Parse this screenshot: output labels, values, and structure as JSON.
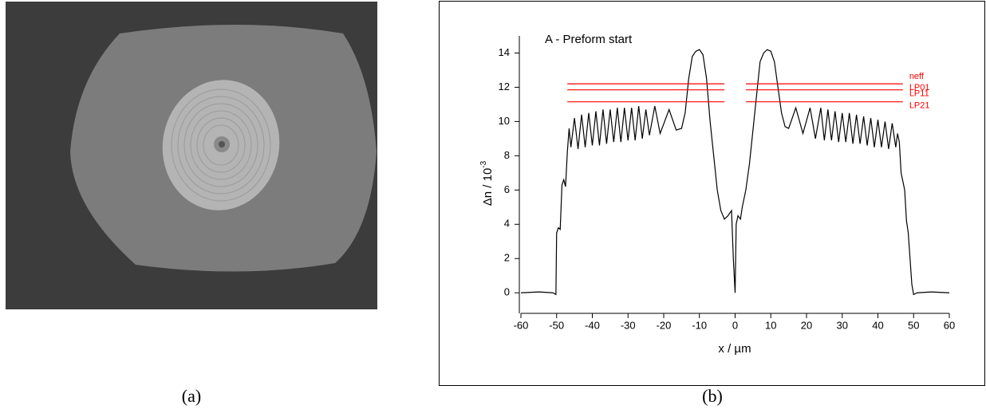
{
  "panel_labels": [
    "(a)",
    "(b)"
  ],
  "chart_data": {
    "type": "line",
    "annotation": "A - Preform start",
    "x_label": "x / µm",
    "y_label": "Δn / 10",
    "y_label_exponent": "-3",
    "color": "#000000",
    "xlim": [
      -60,
      60
    ],
    "ylim": [
      -1.2,
      15
    ],
    "xticks": [
      -60,
      -50,
      -40,
      -30,
      -20,
      -10,
      0,
      10,
      20,
      30,
      40,
      50,
      60
    ],
    "yticks": [
      0,
      2,
      4,
      6,
      8,
      10,
      12,
      14
    ],
    "x": [
      -60,
      -55,
      -51,
      -50.2,
      -50,
      -49.5,
      -49,
      -48.5,
      -48,
      -47.5,
      -47,
      -46.5,
      -46,
      -45,
      -44,
      -43,
      -42,
      -41,
      -40,
      -39,
      -38,
      -37,
      -36,
      -35,
      -34,
      -33,
      -32,
      -31,
      -30,
      -29,
      -28,
      -27,
      -26,
      -25,
      -24,
      -22.5,
      -21,
      -18.5,
      -16.5,
      -15,
      -14,
      -13,
      -12,
      -11,
      -10,
      -9,
      -8,
      -7,
      -6,
      -5,
      -4,
      -3,
      -2,
      -1,
      -0.5,
      0,
      0.3,
      0.8,
      1.5,
      2,
      3,
      4,
      5,
      6,
      7,
      8,
      9,
      10,
      11,
      12,
      13,
      14,
      15,
      17,
      19,
      21,
      22.5,
      24,
      25,
      26,
      27,
      28,
      29,
      30,
      31,
      32,
      33,
      34,
      35,
      36,
      37,
      38,
      39,
      40,
      41,
      42,
      43,
      44,
      45,
      45.5,
      46,
      46.5,
      47,
      47.5,
      48,
      48.5,
      49,
      49.5,
      50,
      51,
      55,
      60
    ],
    "values": [
      0,
      0.05,
      0,
      -0.1,
      3.5,
      3.8,
      3.7,
      6.3,
      6.6,
      6.2,
      8.2,
      9.6,
      8.5,
      10.2,
      8.4,
      10.4,
      8.5,
      10.5,
      8.6,
      10.6,
      8.6,
      10.7,
      8.7,
      10.7,
      8.8,
      10.8,
      8.8,
      10.8,
      8.9,
      10.8,
      8.9,
      10.9,
      9.0,
      10.7,
      9.2,
      10.9,
      9.3,
      10.7,
      9.5,
      9.6,
      10.5,
      12.5,
      13.8,
      14.1,
      14.2,
      13.9,
      12.5,
      10,
      8,
      6,
      4.8,
      4.3,
      4.5,
      4.8,
      2,
      0,
      4,
      4.5,
      4.3,
      5,
      6,
      7.5,
      9.5,
      11.5,
      13.5,
      14,
      14.2,
      14.1,
      13.5,
      12,
      10.5,
      9.7,
      9.6,
      10.8,
      9.3,
      10.8,
      9,
      10.8,
      8.9,
      10.7,
      8.9,
      10.6,
      8.8,
      10.5,
      8.8,
      10.5,
      8.7,
      10.4,
      8.7,
      10.3,
      8.6,
      10.2,
      8.5,
      10.1,
      8.5,
      10,
      8.4,
      9.9,
      8.5,
      9.3,
      8.8,
      7,
      6.5,
      6.0,
      4.2,
      3.5,
      2,
      0.5,
      -0.1,
      0,
      0.05,
      0
    ],
    "mode_header": "neff",
    "mode_color": "#ff0000",
    "mode_segments": [
      [
        -47,
        -3
      ],
      [
        3,
        47
      ]
    ],
    "mode_lines": [
      {
        "label": "LP01",
        "value": 12.2
      },
      {
        "label": "LP11",
        "value": 11.85
      },
      {
        "label": "LP21",
        "value": 11.15
      }
    ]
  }
}
